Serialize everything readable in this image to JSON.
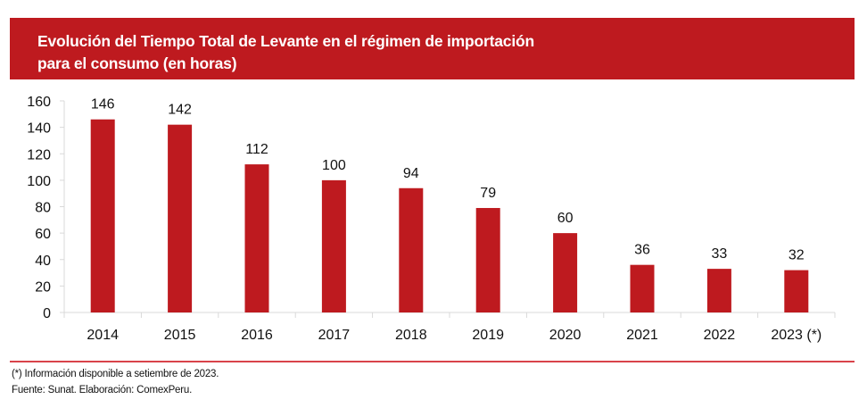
{
  "header": {
    "title_line1": "Evolución del Tiempo Total de Levante en el régimen de importación",
    "title_line2": "para el consumo (en horas)"
  },
  "colors": {
    "bar": "#be1a1f",
    "header_bg": "#be1a1f",
    "rule": "#d9434a",
    "axis": "#d9d9d9"
  },
  "chart_data": {
    "type": "bar",
    "title": "Evolución del Tiempo Total de Levante en el régimen de importación para el consumo (en horas)",
    "categories": [
      "2014",
      "2015",
      "2016",
      "2017",
      "2018",
      "2019",
      "2020",
      "2021",
      "2022",
      "2023 (*)"
    ],
    "values": [
      146,
      142,
      112,
      100,
      94,
      79,
      60,
      36,
      33,
      32
    ],
    "data_labels": [
      "146",
      "142",
      "112",
      "100",
      "94",
      "79",
      "60",
      "36",
      "33",
      "32"
    ],
    "xlabel": "",
    "ylabel": "",
    "ylim": [
      0,
      160
    ],
    "yticks": [
      0,
      20,
      40,
      60,
      80,
      100,
      120,
      140,
      160
    ],
    "ytick_labels": [
      "0",
      "20",
      "40",
      "60",
      "80",
      "100",
      "120",
      "140",
      "160"
    ],
    "grid": false,
    "legend": "none"
  },
  "footnotes": {
    "note": "(*) Información disponible a setiembre de 2023.",
    "source": "Fuente: Sunat. Elaboración: ComexPeru."
  }
}
